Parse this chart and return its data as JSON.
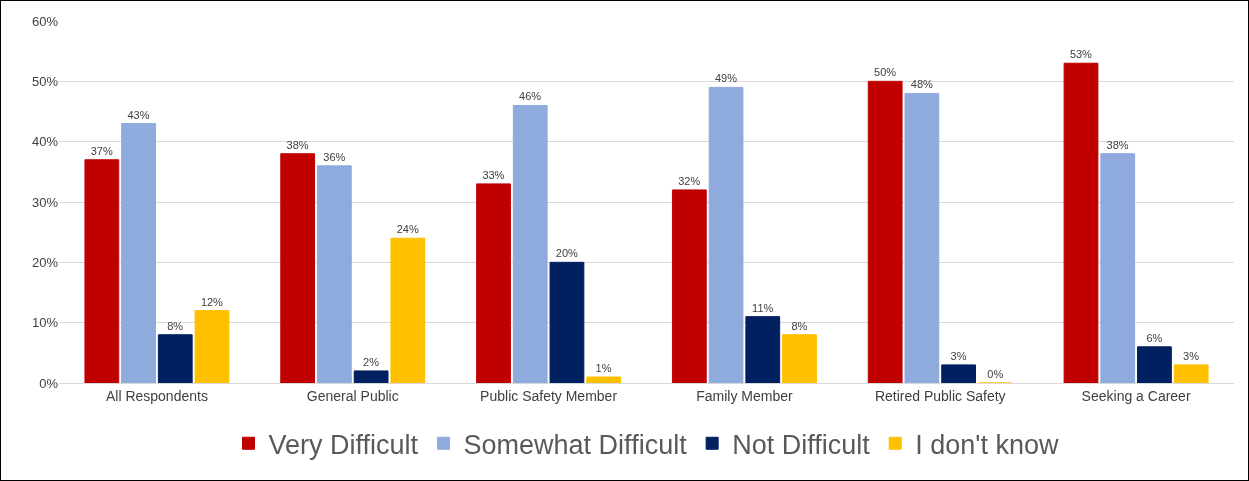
{
  "chart_data": {
    "type": "bar",
    "categories": [
      "All Respondents",
      "General Public",
      "Public Safety Member",
      "Family Member",
      "Retired Public Safety",
      "Seeking a Career"
    ],
    "series": [
      {
        "name": "Very Difficult",
        "color": "#c00000",
        "values": [
          37,
          38,
          33,
          32,
          50,
          53
        ],
        "value_labels": [
          "37%",
          "38%",
          "33%",
          "32%",
          "50%",
          "53%"
        ]
      },
      {
        "name": "Somewhat Difficult",
        "color": "#8faadc",
        "values": [
          43,
          36,
          46,
          49,
          48,
          38
        ],
        "value_labels": [
          "43%",
          "36%",
          "46%",
          "49%",
          "48%",
          "38%"
        ]
      },
      {
        "name": "Not Difficult",
        "color": "#002060",
        "values": [
          8,
          2,
          20,
          11,
          3,
          6
        ],
        "value_labels": [
          "8%",
          "2%",
          "20%",
          "11%",
          "3%",
          "6%"
        ]
      },
      {
        "name": "I don't know",
        "color": "#ffc000",
        "values": [
          12,
          24,
          1,
          8,
          0,
          3
        ],
        "value_labels": [
          "12%",
          "24%",
          "1%",
          "8%",
          "0%",
          "3%"
        ]
      }
    ],
    "ylim": [
      0,
      60
    ],
    "yticks": [
      {
        "value": 0,
        "label": "0%"
      },
      {
        "value": 10,
        "label": "10%"
      },
      {
        "value": 20,
        "label": "20%"
      },
      {
        "value": 30,
        "label": "30%"
      },
      {
        "value": 40,
        "label": "40%"
      },
      {
        "value": 50,
        "label": "50%"
      },
      {
        "value": 60,
        "label": "60%"
      }
    ],
    "grid": "y",
    "legend": "bottom"
  }
}
